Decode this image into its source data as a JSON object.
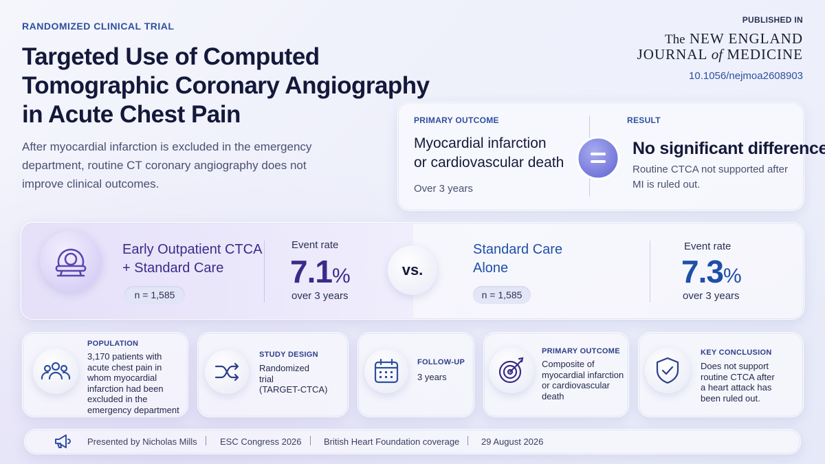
{
  "header": {
    "tag": "RANDOMIZED CLINICAL TRIAL",
    "title_lines": [
      "Targeted Use of Computed",
      "Tomographic Coronary Angiography",
      "in Acute Chest Pain"
    ],
    "summary_lines": [
      "After myocardial infarction is excluded in the emergency",
      "department, routine CT coronary angiography does not",
      "improve clinical outcomes."
    ]
  },
  "journal": {
    "label": "PUBLISHED IN",
    "line1_prefix": "The",
    "line1": "NEW ENGLAND",
    "line2_a": "JOURNAL",
    "line2_of": "of",
    "line2_b": "MEDICINE",
    "doi": "10.1056/nejmoa2608903"
  },
  "outcome": {
    "primary_label": "PRIMARY OUTCOME",
    "primary_lines": [
      "Myocardial infarction",
      "or cardiovascular death"
    ],
    "period": "Over 3 years",
    "result_label": "RESULT",
    "result_headline": "No significant difference",
    "result_lines": [
      "Routine CTCA not supported after",
      "MI is ruled out."
    ]
  },
  "comparison": {
    "arm1": {
      "name_lines": [
        "Early Outpatient CTCA",
        "+ Standard Care"
      ],
      "n": "n = 1,585",
      "rate_label": "Event rate",
      "rate": "7.1",
      "unit": "%",
      "period": "over 3 years"
    },
    "vs": "vs.",
    "arm2": {
      "name_lines": [
        "Standard Care",
        "Alone"
      ],
      "n": "n = 1,585",
      "rate_label": "Event rate",
      "rate": "7.3",
      "unit": "%",
      "period": "over 3 years"
    }
  },
  "cards": [
    {
      "label": "POPULATION",
      "lines": [
        "3,170 patients with",
        "acute chest pain in",
        "whom myocardial",
        "infarction had been",
        "excluded in the",
        "emergency department"
      ]
    },
    {
      "label": "STUDY DESIGN",
      "lines": [
        "Randomized",
        "trial",
        "(TARGET-CTCA)"
      ]
    },
    {
      "label": "FOLLOW-UP",
      "lines": [
        "3 years"
      ]
    },
    {
      "label": "PRIMARY OUTCOME",
      "lines": [
        "Composite of",
        "myocardial infarction",
        "or cardiovascular",
        "death"
      ]
    },
    {
      "label": "KEY CONCLUSION",
      "lines": [
        "Does not support",
        "routine CTCA after",
        "a heart attack has",
        "been ruled out."
      ]
    }
  ],
  "footer": [
    "Presented by Nicholas Mills",
    "ESC Congress 2026",
    "British Heart Foundation coverage",
    "29 August 2026"
  ]
}
